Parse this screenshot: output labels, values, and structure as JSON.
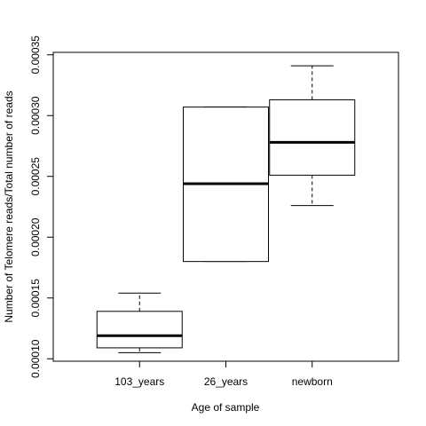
{
  "chart_data": {
    "type": "box",
    "title": "",
    "xlabel": "Age of sample",
    "ylabel": "Number of Telomere reads/Total number of reads",
    "ylim": [
      9.8e-05,
      0.000352
    ],
    "yticks": [
      0.0001,
      0.00015,
      0.0002,
      0.00025,
      0.0003,
      0.00035
    ],
    "ytick_labels": [
      "0.00010",
      "0.00015",
      "0.00020",
      "0.00025",
      "0.00030",
      "0.00035"
    ],
    "grid": false,
    "categories": [
      "103_years",
      "26_years",
      "newborn"
    ],
    "boxes": [
      {
        "category": "103_years",
        "whisker_low": 0.000105,
        "q1": 0.000109,
        "median": 0.000119,
        "q3": 0.000139,
        "whisker_high": 0.000154
      },
      {
        "category": "26_years",
        "whisker_low": 0.00018,
        "q1": 0.00018,
        "median": 0.000244,
        "q3": 0.000307,
        "whisker_high": 0.000307
      },
      {
        "category": "newborn",
        "whisker_low": 0.000226,
        "q1": 0.000251,
        "median": 0.000278,
        "q3": 0.000313,
        "whisker_high": 0.000341
      }
    ]
  }
}
